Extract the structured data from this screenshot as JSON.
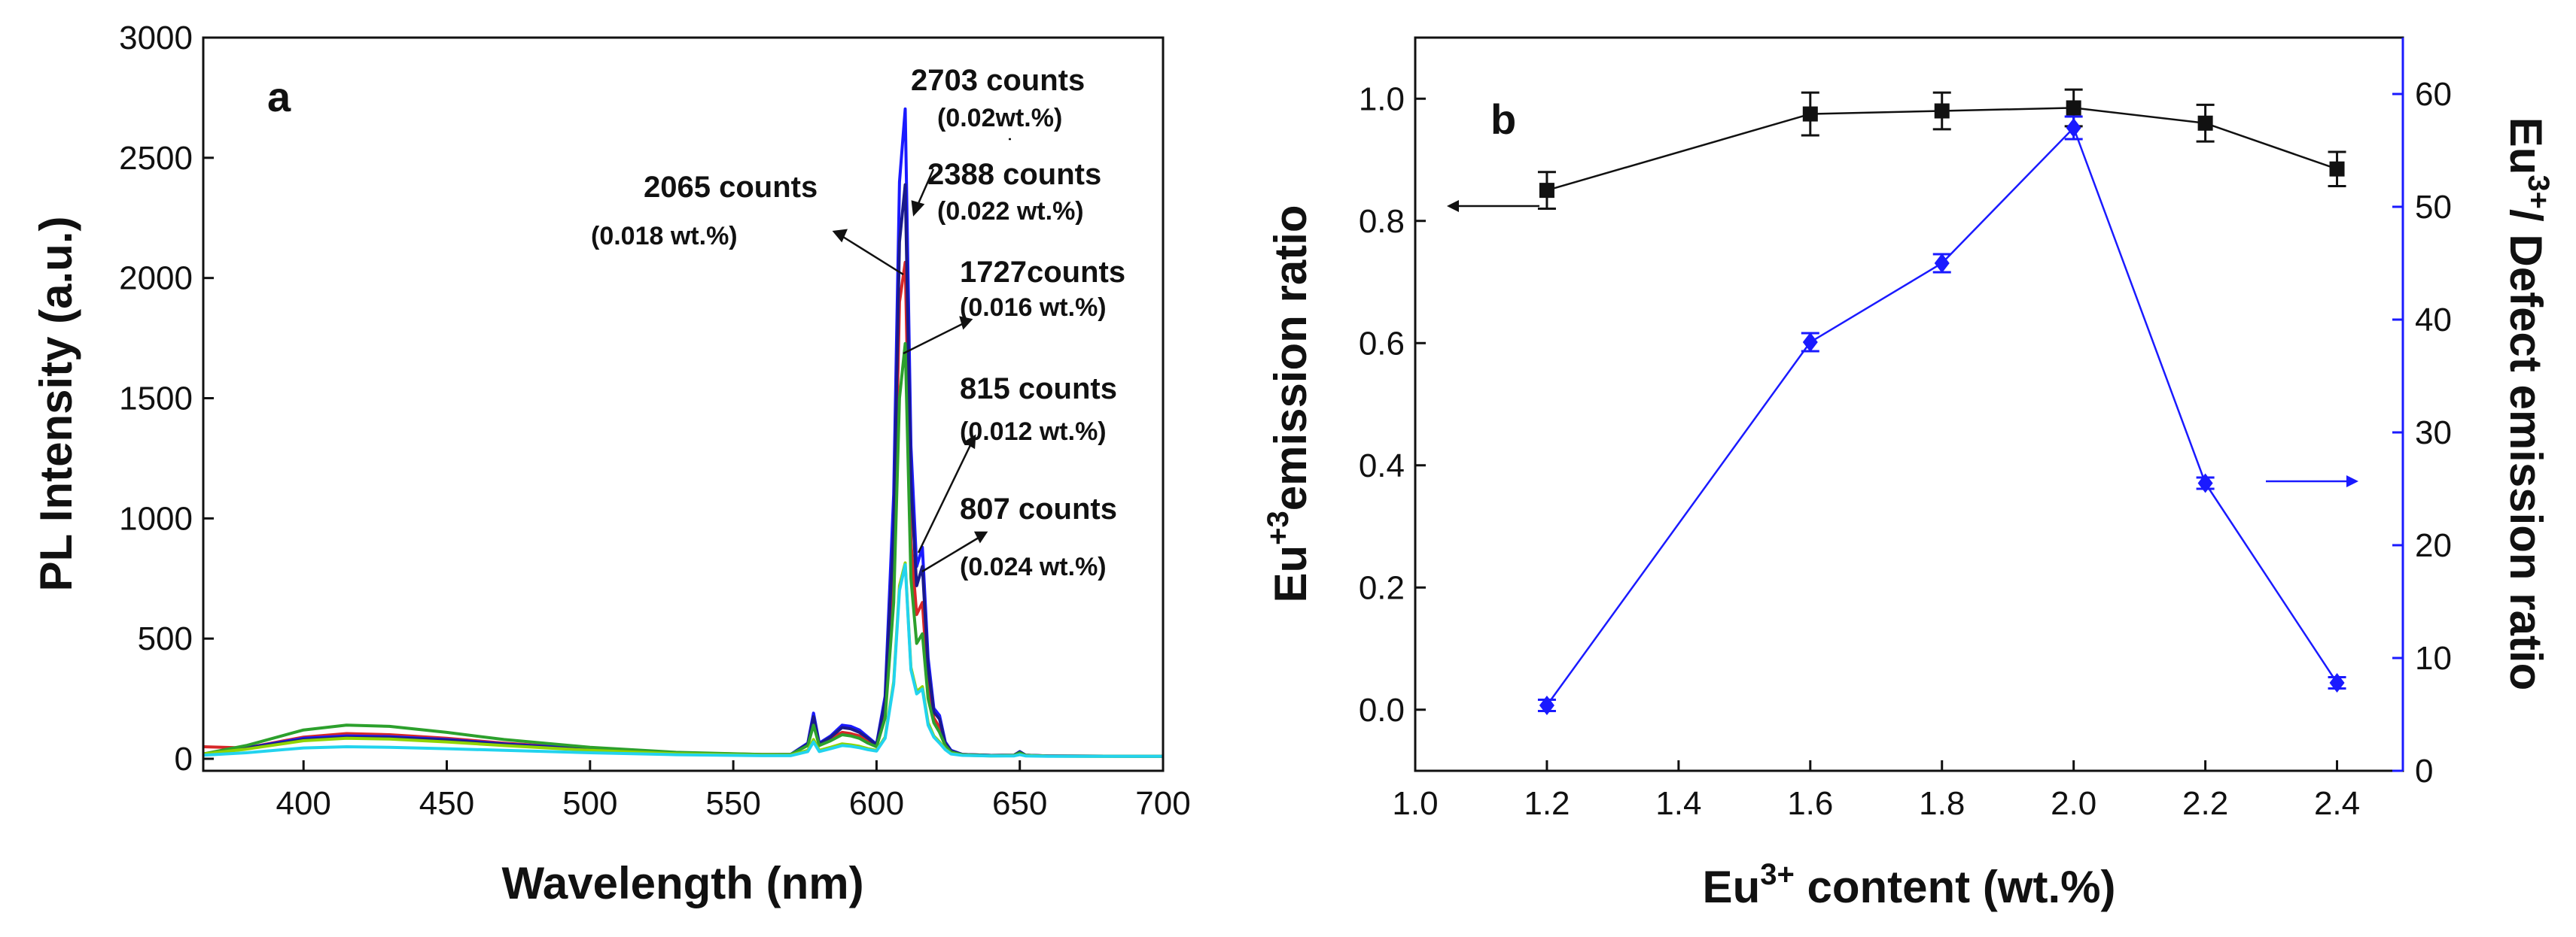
{
  "chart_data": [
    {
      "type": "line",
      "panel_label": "a",
      "xlabel": "Wavelength (nm)",
      "ylabel": "PL Intensity (a.u.)",
      "xlim": [
        365,
        700
      ],
      "ylim": [
        -50,
        3000
      ],
      "xticks": [
        400,
        450,
        500,
        550,
        600,
        650,
        700
      ],
      "yticks": [
        0,
        500,
        1000,
        1500,
        2000,
        2500,
        3000
      ],
      "x": [
        365,
        380,
        400,
        415,
        430,
        450,
        470,
        500,
        530,
        560,
        570,
        576,
        578,
        580,
        584,
        588,
        591,
        594,
        597,
        600,
        603,
        606,
        608,
        610,
        612,
        614,
        616,
        618,
        620,
        622,
        624,
        626,
        630,
        640,
        648,
        650,
        652,
        660,
        680,
        700
      ],
      "series": [
        {
          "name": "0.018 wt.%",
          "color": "#d62728",
          "peak": 2065,
          "values": [
            50,
            45,
            90,
            105,
            100,
            85,
            65,
            42,
            25,
            18,
            18,
            60,
            160,
            60,
            85,
            110,
            105,
            95,
            70,
            55,
            200,
            800,
            1900,
            2065,
            900,
            600,
            650,
            300,
            170,
            130,
            60,
            30,
            18,
            14,
            15,
            28,
            15,
            12,
            11,
            10
          ]
        },
        {
          "name": "0.02 wt.%",
          "color": "#1a1aff",
          "peak": 2703,
          "values": [
            20,
            45,
            85,
            95,
            92,
            80,
            62,
            40,
            24,
            17,
            18,
            65,
            190,
            65,
            95,
            140,
            135,
            120,
            90,
            60,
            260,
            1100,
            2400,
            2703,
            1300,
            800,
            880,
            420,
            210,
            180,
            70,
            35,
            18,
            14,
            15,
            30,
            15,
            12,
            11,
            10
          ]
        },
        {
          "name": "0.022 wt.%",
          "color": "#1a1a8c",
          "peak": 2388,
          "values": [
            20,
            45,
            80,
            90,
            88,
            78,
            60,
            38,
            23,
            16,
            17,
            62,
            175,
            62,
            90,
            130,
            125,
            110,
            85,
            58,
            240,
            950,
            2150,
            2388,
            1150,
            720,
            800,
            380,
            195,
            165,
            65,
            33,
            18,
            14,
            15,
            29,
            15,
            12,
            11,
            10
          ]
        },
        {
          "name": "0.016 wt.%",
          "color": "#2ca02c",
          "peak": 1727,
          "values": [
            20,
            55,
            120,
            140,
            135,
            110,
            80,
            48,
            27,
            18,
            18,
            55,
            140,
            55,
            75,
            100,
            95,
            85,
            65,
            50,
            170,
            650,
            1500,
            1727,
            750,
            480,
            520,
            250,
            150,
            110,
            55,
            28,
            17,
            13,
            14,
            25,
            14,
            11,
            10,
            10
          ]
        },
        {
          "name": "0.012 wt.%",
          "color": "#8fd400",
          "peak": 815,
          "values": [
            20,
            40,
            75,
            85,
            82,
            70,
            55,
            35,
            21,
            15,
            15,
            35,
            80,
            35,
            48,
            62,
            58,
            52,
            42,
            35,
            90,
            320,
            720,
            815,
            380,
            280,
            300,
            150,
            95,
            70,
            40,
            22,
            15,
            12,
            13,
            18,
            13,
            11,
            10,
            10
          ]
        },
        {
          "name": "0.024 wt.%",
          "color": "#22d3ee",
          "peak": 807,
          "values": [
            15,
            25,
            45,
            50,
            48,
            42,
            35,
            25,
            17,
            13,
            13,
            30,
            70,
            30,
            42,
            55,
            52,
            46,
            38,
            32,
            85,
            310,
            700,
            807,
            370,
            270,
            290,
            140,
            90,
            65,
            38,
            20,
            14,
            12,
            12,
            17,
            12,
            10,
            10,
            10
          ]
        }
      ],
      "annotations": [
        {
          "count": "2703 counts",
          "sample": "(0.02wt.%)"
        },
        {
          "count": "2065 counts",
          "sample": "(0.018 wt.%)"
        },
        {
          "count": "2388 counts",
          "sample": "(0.022 wt.%)"
        },
        {
          "count": "1727counts",
          "sample": "(0.016 wt.%)"
        },
        {
          "count": "815 counts",
          "sample": "(0.012 wt.%)"
        },
        {
          "count": "807 counts",
          "sample": "(0.024 wt.%)"
        }
      ]
    },
    {
      "type": "scatter",
      "panel_label": "b",
      "xlabel": "Eu3+ content (wt.%)",
      "xlabel_base": "Eu",
      "xlabel_sup": "3+",
      "xlabel_rest": " content (wt.%)",
      "ylabel_left_base": "Eu",
      "ylabel_left_sup": "+3",
      "ylabel_left_rest": "emission ratio",
      "ylabel_right_base": "Eu",
      "ylabel_right_sup": "3+",
      "ylabel_right_rest": "/ Defect emission ratio",
      "xlim": [
        1.0,
        2.5
      ],
      "ylim_left": [
        -0.1,
        1.1
      ],
      "ylim_right": [
        0,
        65
      ],
      "xticks": [
        1.0,
        1.2,
        1.4,
        1.6,
        1.8,
        2.0,
        2.2,
        2.4
      ],
      "yticks_left": [
        0.0,
        0.2,
        0.4,
        0.6,
        0.8,
        1.0
      ],
      "yticks_right": [
        0,
        10,
        20,
        30,
        40,
        50,
        60
      ],
      "series": [
        {
          "name": "Eu+3 emission ratio",
          "axis": "left",
          "color": "#111111",
          "marker": "square",
          "x": [
            1.2,
            1.6,
            1.8,
            2.0,
            2.2,
            2.4
          ],
          "y": [
            0.85,
            0.975,
            0.98,
            0.985,
            0.96,
            0.885
          ],
          "err": [
            0.03,
            0.035,
            0.03,
            0.03,
            0.03,
            0.028
          ]
        },
        {
          "name": "Eu3+/Defect emission ratio",
          "axis": "right",
          "color": "#1a1aff",
          "marker": "diamond",
          "x": [
            1.2,
            1.6,
            1.8,
            2.0,
            2.2,
            2.4
          ],
          "y": [
            5.8,
            38,
            45,
            57,
            25.5,
            7.8
          ],
          "err": [
            0.5,
            0.8,
            0.8,
            1.0,
            0.5,
            0.5
          ]
        }
      ]
    }
  ]
}
